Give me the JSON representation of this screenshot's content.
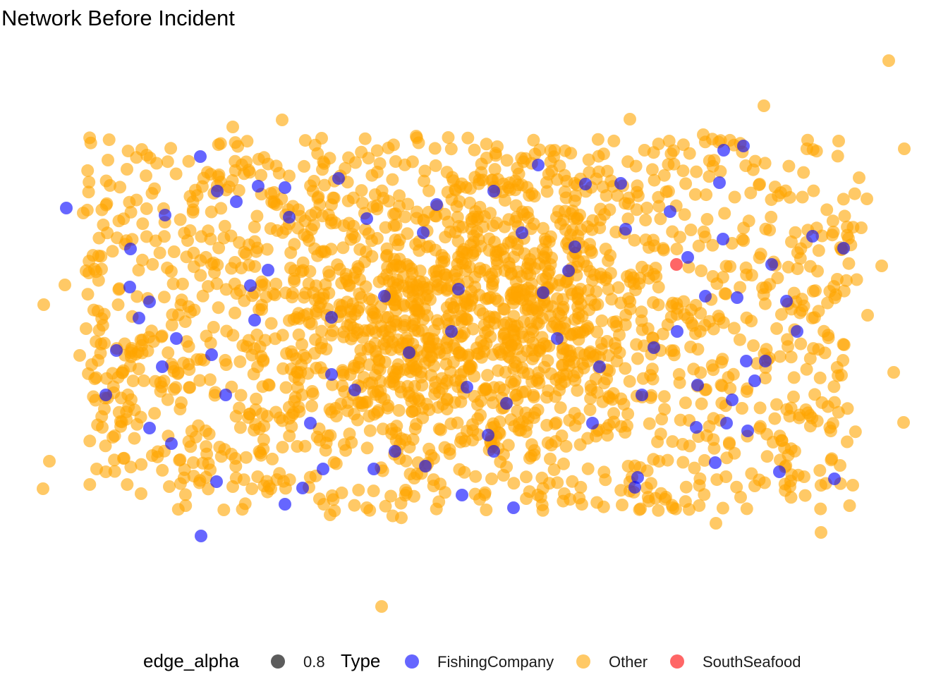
{
  "chart_data": {
    "type": "scatter",
    "title": "Network Before Incident",
    "xlabel": "",
    "ylabel": "",
    "axes_visible": false,
    "grid": false,
    "legend_position": "bottom",
    "legend": {
      "edge_alpha": {
        "title": "edge_alpha",
        "entries": [
          {
            "label": "0.8",
            "color": "#404040"
          }
        ]
      },
      "type": {
        "title": "Type",
        "entries": [
          {
            "label": "FishingCompany",
            "color": "#0000ff"
          },
          {
            "label": "Other",
            "color": "#ffa500"
          },
          {
            "label": "SouthSeafood",
            "color": "#ff0000"
          }
        ]
      }
    },
    "point_alpha": 0.6,
    "series": [
      {
        "name": "FishingCompany",
        "color": "#0000ff",
        "points": [
          [
            94,
            295
          ],
          [
            284,
            222
          ],
          [
            308,
            271
          ],
          [
            366,
            264
          ],
          [
            404,
            266
          ],
          [
            234,
            305
          ],
          [
            335,
            286
          ],
          [
            185,
            353
          ],
          [
            184,
            407
          ],
          [
            212,
            428
          ],
          [
            197,
            451
          ],
          [
            361,
            454
          ],
          [
            165,
            497
          ],
          [
            212,
            607
          ],
          [
            243,
            629
          ],
          [
            307,
            683
          ],
          [
            285,
            760
          ],
          [
            404,
            715
          ],
          [
            429,
            692
          ],
          [
            458,
            665
          ],
          [
            470,
            531
          ],
          [
            503,
            553
          ],
          [
            530,
            665
          ],
          [
            603,
            661
          ],
          [
            655,
            702
          ],
          [
            692,
            617
          ],
          [
            728,
            720
          ],
          [
            662,
            549
          ],
          [
            718,
            572
          ],
          [
            619,
            290
          ],
          [
            700,
            271
          ],
          [
            763,
            234
          ],
          [
            830,
            261
          ],
          [
            815,
            350
          ],
          [
            806,
            384
          ],
          [
            887,
            325
          ],
          [
            904,
            677
          ],
          [
            900,
            691
          ],
          [
            927,
            493
          ],
          [
            975,
            365
          ],
          [
            1026,
            213
          ],
          [
            1054,
            207
          ],
          [
            1025,
            339
          ],
          [
            1020,
            259
          ],
          [
            1045,
            422
          ],
          [
            1085,
            512
          ],
          [
            1058,
            512
          ],
          [
            1094,
            375
          ],
          [
            1115,
            427
          ],
          [
            1152,
            335
          ],
          [
            1196,
            352
          ],
          [
            1105,
            669
          ],
          [
            1183,
            679
          ],
          [
            1014,
            656
          ],
          [
            1060,
            611
          ],
          [
            987,
            606
          ],
          [
            1038,
            567
          ],
          [
            989,
            546
          ],
          [
            380,
            383
          ],
          [
            355,
            405
          ],
          [
            300,
            503
          ],
          [
            520,
            310
          ],
          [
            480,
            253
          ],
          [
            410,
            308
          ],
          [
            580,
            500
          ],
          [
            640,
            470
          ],
          [
            770,
            415
          ],
          [
            700,
            640
          ],
          [
            850,
            520
          ],
          [
            910,
            560
          ],
          [
            960,
            470
          ],
          [
            1030,
            600
          ],
          [
            250,
            480
          ],
          [
            320,
            560
          ],
          [
            440,
            600
          ],
          [
            560,
            640
          ],
          [
            600,
            330
          ],
          [
            740,
            330
          ],
          [
            880,
            260
          ],
          [
            950,
            300
          ],
          [
            1000,
            420
          ],
          [
            1130,
            470
          ],
          [
            150,
            560
          ],
          [
            230,
            520
          ],
          [
            470,
            450
          ],
          [
            545,
            420
          ],
          [
            650,
            410
          ],
          [
            790,
            480
          ],
          [
            840,
            600
          ],
          [
            1070,
            540
          ]
        ]
      },
      {
        "name": "SouthSeafood",
        "color": "#ff0000",
        "points": [
          [
            959,
            375
          ]
        ]
      },
      {
        "name": "Other",
        "color": "#ffa500",
        "points": [
          [
            62,
            432
          ],
          [
            61,
            693
          ],
          [
            70,
            654
          ],
          [
            92,
            404
          ],
          [
            118,
            302
          ],
          [
            122,
            384
          ],
          [
            113,
            504
          ],
          [
            122,
            466
          ],
          [
            137,
            665
          ],
          [
            150,
            669
          ],
          [
            1260,
            86
          ],
          [
            1083,
            150
          ],
          [
            1282,
            211
          ],
          [
            1189,
            200
          ],
          [
            893,
            169
          ],
          [
            1230,
            447
          ],
          [
            1267,
            528
          ],
          [
            1281,
            599
          ],
          [
            1250,
            377
          ],
          [
            1218,
            252
          ],
          [
            1229,
            282
          ],
          [
            1221,
            323
          ],
          [
            1015,
            742
          ],
          [
            1164,
            755
          ],
          [
            541,
            860
          ],
          [
            1209,
            688
          ],
          [
            1140,
            676
          ],
          [
            1193,
            532
          ],
          [
            1187,
            396
          ],
          [
            1191,
            660
          ],
          [
            400,
            170
          ],
          [
            330,
            180
          ],
          [
            456,
            196
          ],
          [
            590,
            193
          ],
          [
            705,
            208
          ],
          [
            997,
            191
          ],
          [
            153,
            227
          ],
          [
            180,
            240
          ],
          [
            156,
            263
          ],
          [
            208,
            220
          ],
          [
            201,
            212
          ],
          [
            130,
            517
          ],
          [
            160,
            620
          ],
          [
            148,
            580
          ],
          [
            175,
            650
          ],
          [
            200,
            700
          ],
          [
            240,
            690
          ],
          [
            330,
            690
          ],
          [
            468,
            730
          ],
          [
            520,
            720
          ],
          [
            575,
            695
          ],
          [
            680,
            708
          ],
          [
            800,
            700
          ],
          [
            882,
            716
          ],
          [
            944,
            705
          ],
          [
            1050,
            705
          ],
          [
            1120,
            690
          ]
        ],
        "cluster": {
          "x_range": [
            120,
            1215
          ],
          "y_range": [
            195,
            725
          ],
          "core": {
            "cx": 650,
            "cy": 450,
            "sx": 90,
            "sy": 65
          },
          "approx_count": 2200
        }
      }
    ]
  }
}
